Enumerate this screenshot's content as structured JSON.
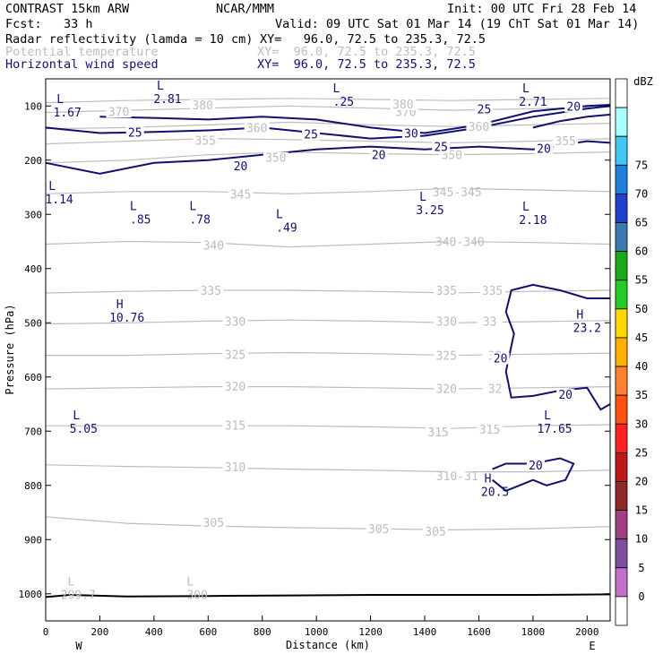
{
  "header": {
    "model": "CONTRAST 15km ARW",
    "center": "NCAR/MMM",
    "init": "Init: 00 UTC Fri 28 Feb 14",
    "fcst": "Fcst:   33 h",
    "valid": "Valid: 09 UTC Sat 01 Mar 14 (19 ChT Sat 01 Mar 14)",
    "fields": [
      {
        "name": "Radar reflectivity (lamda = 10 cm)",
        "xy": "XY=   96.0, 72.5 to 235.3, 72.5"
      },
      {
        "name": "Potential temperature",
        "xy": "XY=  96.0, 72.5 to 235.3, 72.5"
      },
      {
        "name": "Horizontal wind speed",
        "xy": "XY=  96.0, 72.5 to 235.3, 72.5"
      }
    ]
  },
  "colors": {
    "theta": "#bdbdbd",
    "wind": "#101070",
    "ground": "#000000"
  },
  "chart_data": {
    "type": "contour",
    "xlabel": "Distance (km)",
    "ylabel": "Pressure (hPa)",
    "xlim": [
      0,
      2085
    ],
    "ylim": [
      1050,
      50
    ],
    "x_ticks": [
      "0",
      "200",
      "400",
      "600",
      "800",
      "1000",
      "1200",
      "1400",
      "1600",
      "1800",
      "2000"
    ],
    "y_ticks": [
      "100",
      "200",
      "300",
      "400",
      "500",
      "600",
      "700",
      "800",
      "900",
      "1000"
    ],
    "x_end_labels": {
      "left": "W",
      "right": "E"
    },
    "colorbar": {
      "unit": "dBZ",
      "levels": [
        "0",
        "5",
        "10",
        "15",
        "20",
        "25",
        "30",
        "35",
        "40",
        "45",
        "50",
        "55",
        "60",
        "65",
        "70",
        "75"
      ],
      "colors": [
        "#ffffff",
        "#aaffff",
        "#40c8f0",
        "#2080e0",
        "#2040d0",
        "#3c7ab0",
        "#1aaa1a",
        "#22cc22",
        "#ffd800",
        "#ffb000",
        "#ff8030",
        "#ff5010",
        "#ff2020",
        "#c01818",
        "#902828",
        "#a04080",
        "#8050a0",
        "#c070c8",
        "#ffffff"
      ]
    },
    "theta_contours": [
      {
        "label": "305",
        "x": [
          0,
          300,
          600,
          900,
          1200,
          1500,
          1800,
          2085
        ],
        "y": [
          858,
          870,
          875,
          878,
          880,
          882,
          880,
          876
        ]
      },
      {
        "label": "310",
        "x": [
          0,
          300,
          600,
          900,
          1200,
          1500,
          1800,
          2085
        ],
        "y": [
          762,
          765,
          767,
          770,
          772,
          775,
          775,
          772
        ]
      },
      {
        "label": "315",
        "x": [
          0,
          300,
          600,
          900,
          1200,
          1500,
          1800,
          2085
        ],
        "y": [
          690,
          690,
          690,
          690,
          692,
          695,
          690,
          688
        ]
      },
      {
        "label": "320",
        "x": [
          0,
          300,
          600,
          900,
          1200,
          1500,
          1800,
          2085
        ],
        "y": [
          622,
          620,
          618,
          618,
          620,
          622,
          620,
          618
        ]
      },
      {
        "label": "325",
        "x": [
          0,
          300,
          600,
          900,
          1200,
          1500,
          1800,
          2085
        ],
        "y": [
          560,
          560,
          557,
          555,
          557,
          560,
          558,
          556
        ]
      },
      {
        "label": "330",
        "x": [
          0,
          300,
          600,
          900,
          1200,
          1500,
          1800,
          2085
        ],
        "y": [
          502,
          500,
          497,
          495,
          497,
          500,
          498,
          496
        ]
      },
      {
        "label": "335",
        "x": [
          0,
          300,
          600,
          900,
          1200,
          1500,
          1800,
          2085
        ],
        "y": [
          445,
          442,
          440,
          440,
          442,
          445,
          442,
          440
        ]
      },
      {
        "label": "340",
        "x": [
          0,
          300,
          600,
          900,
          1200,
          1500,
          1800,
          2085
        ],
        "y": [
          355,
          350,
          352,
          360,
          355,
          350,
          352,
          355
        ]
      },
      {
        "label": "345",
        "x": [
          0,
          300,
          600,
          900,
          1200,
          1500,
          1800,
          2085
        ],
        "y": [
          262,
          258,
          258,
          262,
          258,
          252,
          255,
          258
        ]
      },
      {
        "label": "350",
        "x": [
          0,
          300,
          600,
          900,
          1200,
          1500,
          1800,
          2085
        ],
        "y": [
          205,
          200,
          190,
          185,
          188,
          190,
          188,
          185
        ]
      },
      {
        "label": "355",
        "x": [
          0,
          300,
          600,
          900,
          1200,
          1500,
          1800,
          2085
        ],
        "y": [
          170,
          165,
          160,
          162,
          165,
          168,
          165,
          160
        ]
      },
      {
        "label": "360",
        "x": [
          0,
          300,
          600,
          900,
          1200,
          1500,
          1800,
          2085
        ],
        "y": [
          142,
          140,
          135,
          130,
          135,
          138,
          135,
          132
        ]
      },
      {
        "label": "370",
        "x": [
          0,
          300,
          600,
          900,
          1200,
          1500,
          1800,
          2085
        ],
        "y": [
          112,
          108,
          104,
          100,
          104,
          108,
          105,
          102
        ]
      },
      {
        "label": "380",
        "x": [
          0,
          300,
          600,
          900,
          1200,
          1500,
          1800,
          2085
        ],
        "y": [
          94,
          90,
          88,
          86,
          88,
          90,
          88,
          86
        ]
      }
    ],
    "theta_labels": [
      {
        "text": "305",
        "x": 620,
        "y": 868
      },
      {
        "text": "305",
        "x": 1230,
        "y": 880
      },
      {
        "text": "305",
        "x": 1440,
        "y": 885
      },
      {
        "text": "310",
        "x": 700,
        "y": 766
      },
      {
        "text": "310-31",
        "x": 1520,
        "y": 782
      },
      {
        "text": "315",
        "x": 700,
        "y": 689
      },
      {
        "text": "315",
        "x": 1450,
        "y": 701
      },
      {
        "text": "315",
        "x": 1640,
        "y": 696
      },
      {
        "text": "320",
        "x": 700,
        "y": 617
      },
      {
        "text": "320",
        "x": 1480,
        "y": 621
      },
      {
        "text": "32",
        "x": 1660,
        "y": 621
      },
      {
        "text": "325",
        "x": 700,
        "y": 558
      },
      {
        "text": "325",
        "x": 1480,
        "y": 560
      },
      {
        "text": "32",
        "x": 1660,
        "y": 560
      },
      {
        "text": "330",
        "x": 700,
        "y": 497
      },
      {
        "text": "330",
        "x": 1480,
        "y": 497
      },
      {
        "text": "33",
        "x": 1640,
        "y": 497
      },
      {
        "text": "335",
        "x": 610,
        "y": 440
      },
      {
        "text": "335",
        "x": 1480,
        "y": 440
      },
      {
        "text": "335",
        "x": 1650,
        "y": 440
      },
      {
        "text": "340",
        "x": 620,
        "y": 357
      },
      {
        "text": "340-340",
        "x": 1530,
        "y": 350
      },
      {
        "text": "345",
        "x": 720,
        "y": 262
      },
      {
        "text": "345-345",
        "x": 1520,
        "y": 258
      },
      {
        "text": "350",
        "x": 850,
        "y": 195
      },
      {
        "text": "350",
        "x": 1500,
        "y": 190
      },
      {
        "text": "355",
        "x": 590,
        "y": 163
      },
      {
        "text": "355",
        "x": 1920,
        "y": 164
      },
      {
        "text": "360",
        "x": 780,
        "y": 140
      },
      {
        "text": "360",
        "x": 1600,
        "y": 138
      },
      {
        "text": "370",
        "x": 270,
        "y": 110
      },
      {
        "text": "370",
        "x": 1330,
        "y": 110
      },
      {
        "text": "380",
        "x": 580,
        "y": 98
      },
      {
        "text": "380",
        "x": 1320,
        "y": 96
      }
    ],
    "wind_contours": [
      {
        "label": "20",
        "x": [
          0,
          200,
          400,
          600,
          800,
          1000,
          1200,
          1400,
          1600,
          1800,
          2000,
          2085
        ],
        "y": [
          205,
          225,
          205,
          200,
          190,
          180,
          175,
          180,
          175,
          180,
          165,
          168
        ]
      },
      {
        "label": "25",
        "x": [
          0,
          200,
          400,
          600,
          800,
          1000,
          1200,
          1400,
          1600,
          1800,
          2000,
          2085
        ],
        "y": [
          140,
          150,
          148,
          145,
          140,
          150,
          160,
          155,
          140,
          120,
          105,
          100
        ]
      },
      {
        "label": "30",
        "x": [
          200,
          400,
          600,
          800,
          1000,
          1200,
          1400,
          1600,
          1800,
          2000,
          2085
        ],
        "y": [
          120,
          122,
          125,
          120,
          125,
          140,
          150,
          135,
          110,
          100,
          98
        ]
      },
      {
        "label": "20",
        "x": [
          1800,
          1900,
          2000,
          2085
        ],
        "y": [
          140,
          128,
          120,
          116
        ]
      },
      {
        "label": "20",
        "x": [
          2085,
          2000,
          1900,
          1800,
          1720,
          1700,
          1730,
          1700,
          1720,
          1800,
          1900,
          2000,
          2050,
          2085
        ],
        "y": [
          455,
          455,
          440,
          430,
          440,
          480,
          520,
          590,
          638,
          635,
          625,
          620,
          660,
          650
        ]
      },
      {
        "label": "20",
        "x": [
          1650,
          1700,
          1800,
          1900,
          1950,
          1920,
          1850,
          1800,
          1750,
          1700,
          1650
        ],
        "y": [
          770,
          760,
          760,
          750,
          760,
          790,
          800,
          790,
          800,
          810,
          790
        ]
      }
    ],
    "wind_labels": [
      {
        "text": "25",
        "x": 330,
        "y": 148
      },
      {
        "text": "25",
        "x": 980,
        "y": 152
      },
      {
        "text": "30",
        "x": 1350,
        "y": 150
      },
      {
        "text": "25",
        "x": 1460,
        "y": 175
      },
      {
        "text": "20",
        "x": 720,
        "y": 210
      },
      {
        "text": "20",
        "x": 1230,
        "y": 190
      },
      {
        "text": "20",
        "x": 1840,
        "y": 178
      },
      {
        "text": "25",
        "x": 1620,
        "y": 105
      },
      {
        "text": "20",
        "x": 1950,
        "y": 100
      },
      {
        "text": "20",
        "x": 1680,
        "y": 565
      },
      {
        "text": "20",
        "x": 1920,
        "y": 632
      },
      {
        "text": "20",
        "x": 1810,
        "y": 762
      }
    ],
    "extrema_labels": [
      {
        "mark": "L",
        "value": "1.67",
        "x": 80,
        "y": 95
      },
      {
        "mark": "L",
        "value": "2.81",
        "x": 450,
        "y": 70
      },
      {
        "mark": "L",
        "value": ".25",
        "x": 1100,
        "y": 75
      },
      {
        "mark": "L",
        "value": "2.71",
        "x": 1800,
        "y": 75
      },
      {
        "mark": "L",
        "value": "1.14",
        "x": 50,
        "y": 255
      },
      {
        "mark": "L",
        "value": ".85",
        "x": 350,
        "y": 292
      },
      {
        "mark": "L",
        "value": ".78",
        "x": 570,
        "y": 292
      },
      {
        "mark": "L",
        "value": ".49",
        "x": 890,
        "y": 307
      },
      {
        "mark": "L",
        "value": "3.25",
        "x": 1420,
        "y": 275
      },
      {
        "mark": "L",
        "value": "2.18",
        "x": 1800,
        "y": 293
      },
      {
        "mark": "H",
        "value": "10.76",
        "x": 300,
        "y": 473
      },
      {
        "mark": "H",
        "value": "23.2",
        "x": 2000,
        "y": 492
      },
      {
        "mark": "L",
        "value": "5.05",
        "x": 140,
        "y": 678
      },
      {
        "mark": "L",
        "value": "17.65",
        "x": 1880,
        "y": 678
      },
      {
        "mark": "H",
        "value": "20.5",
        "x": 1660,
        "y": 795
      },
      {
        "mark": "L",
        "value": "299.7",
        "x": 120,
        "y": 985
      },
      {
        "mark": "L",
        "value": "300",
        "x": 560,
        "y": 985
      }
    ],
    "ground": {
      "x": [
        0,
        90,
        300,
        600,
        900,
        1200,
        1500,
        1800,
        2085
      ],
      "y": [
        1006,
        1002,
        1005,
        1004,
        1003,
        1002,
        1002,
        1002,
        1001
      ]
    }
  }
}
